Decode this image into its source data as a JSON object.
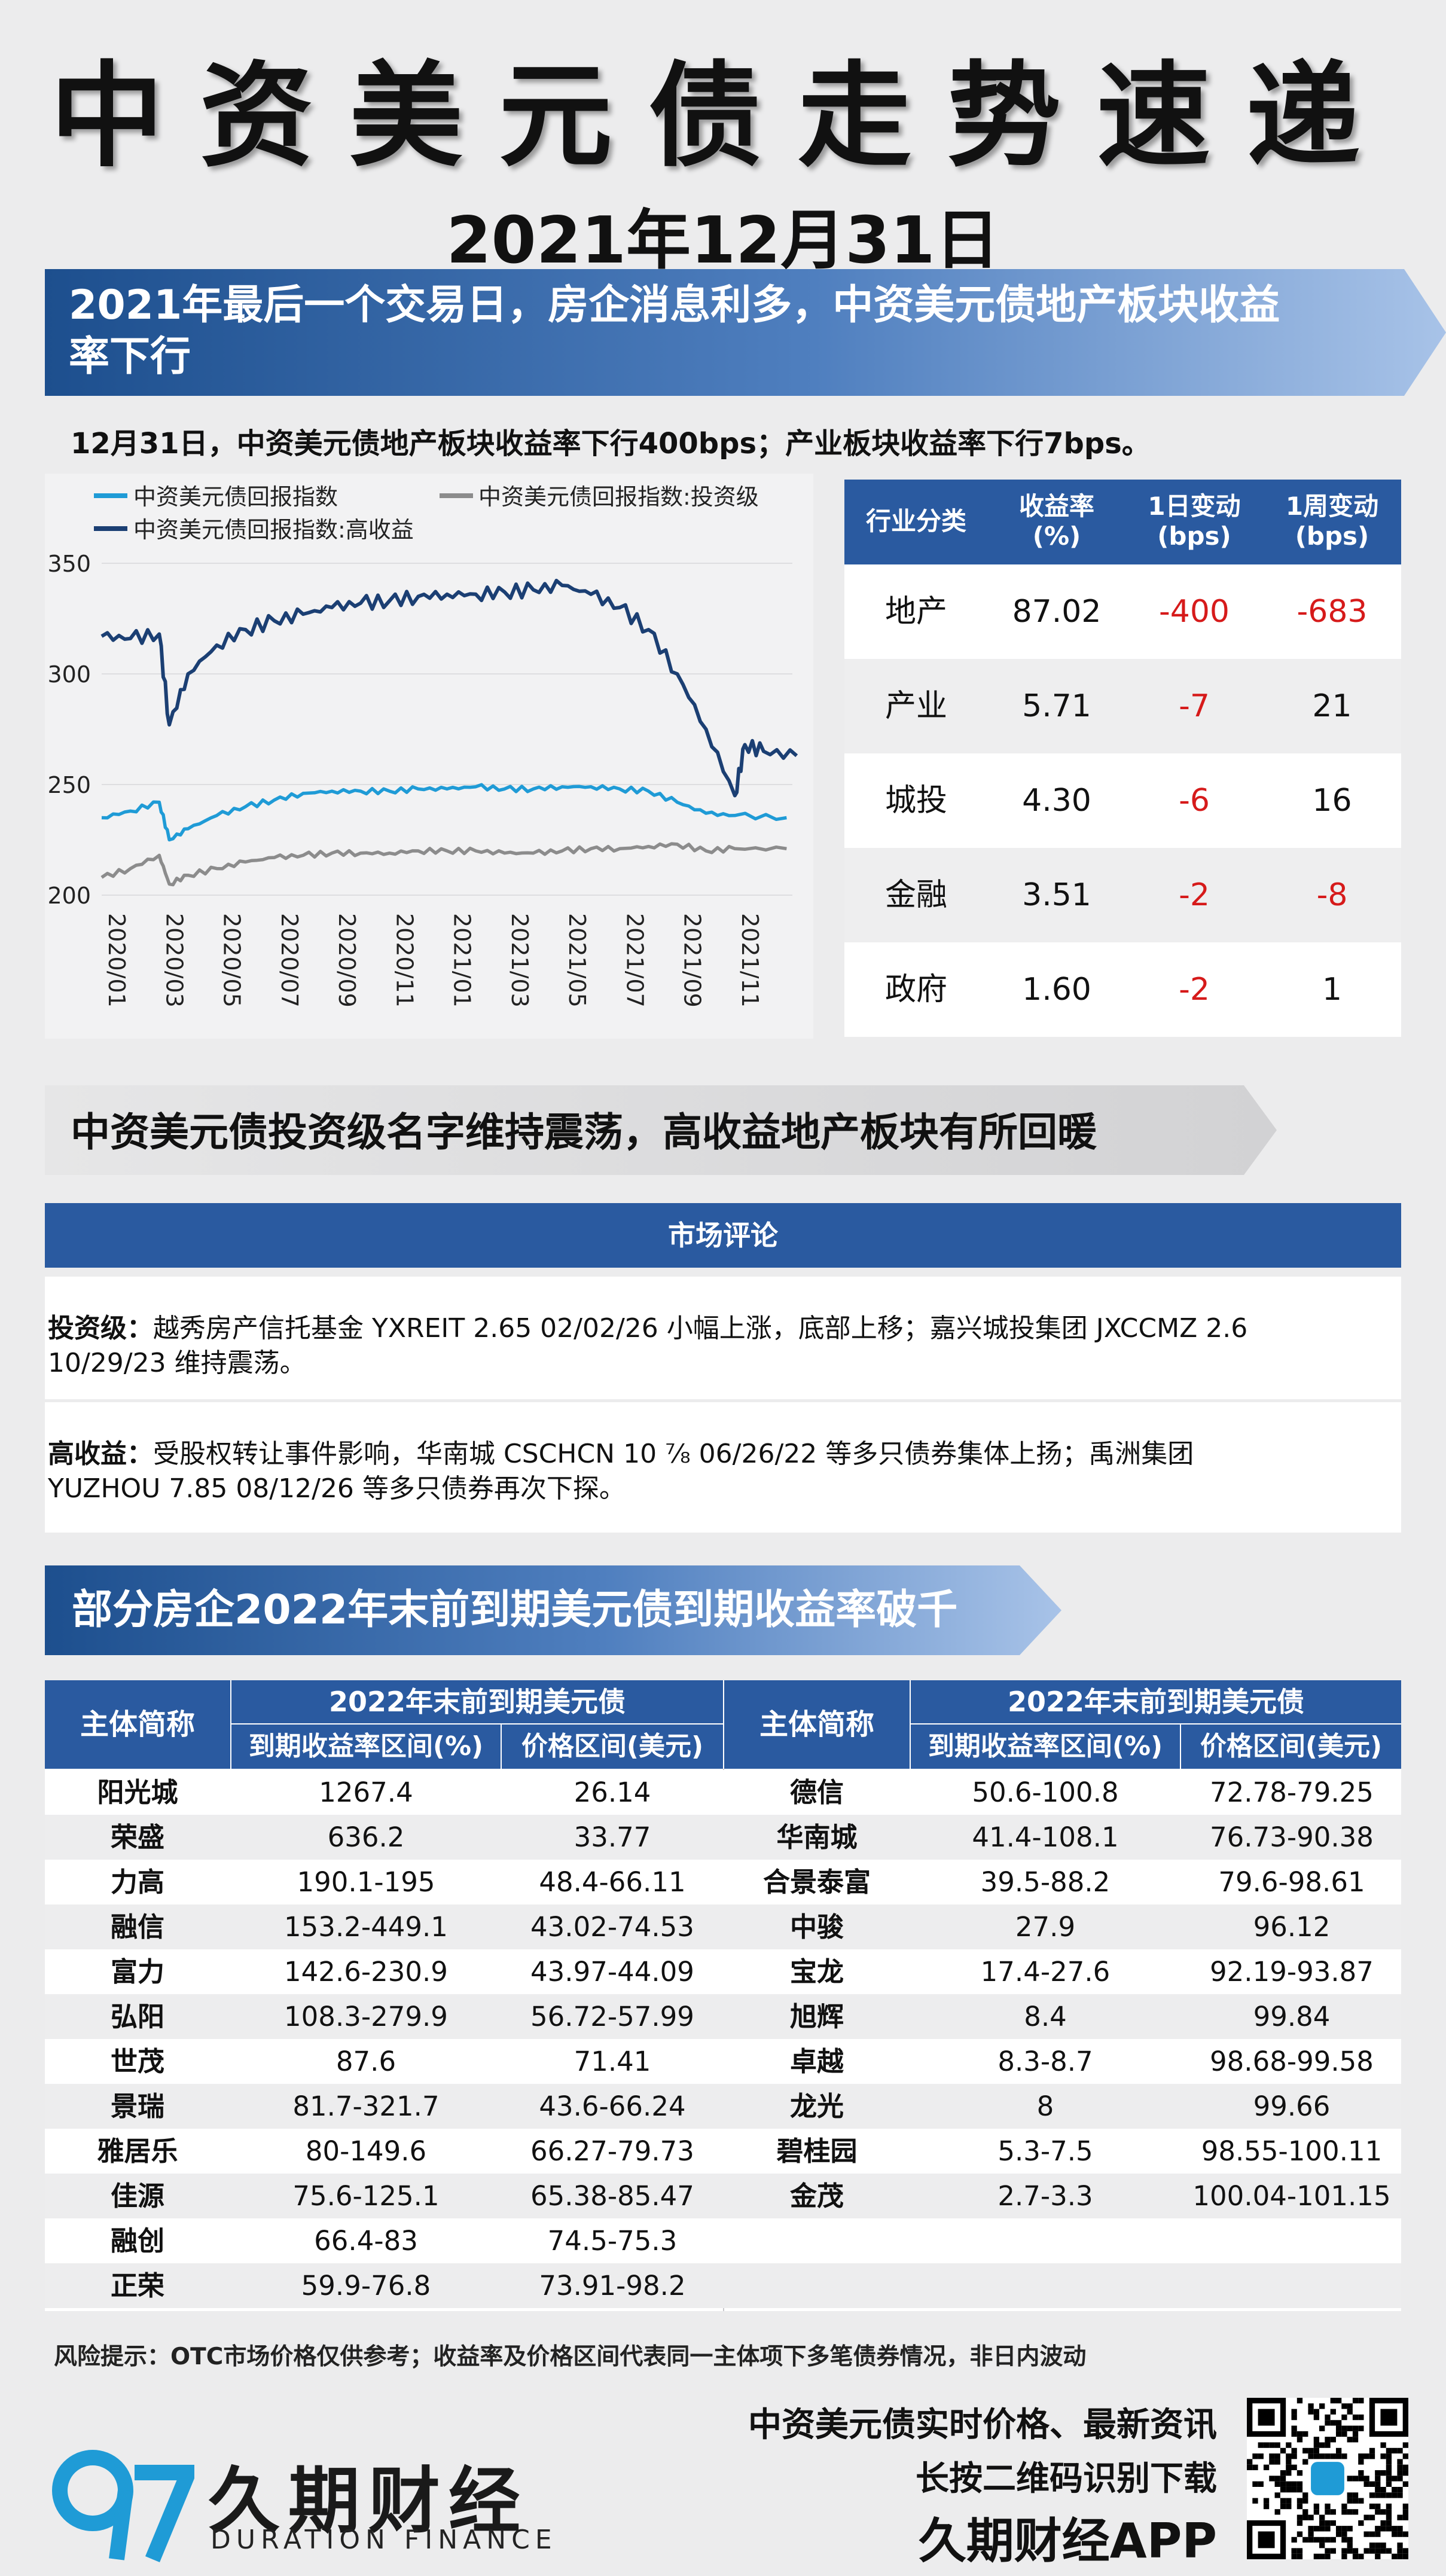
{
  "title": "中资美元债走势速递",
  "date": "2021年12月31日",
  "banner1": {
    "line1": "2021年最后一个交易日，房企消息利多，中资美元债地产板块收益",
    "line2": "率下行"
  },
  "subtitle": "12月31日，中资美元债地产板块收益率下行400bps；产业板块收益率下行7bps。",
  "chart_data": {
    "type": "line",
    "x_tick_labels": [
      "2020/01",
      "2020/03",
      "2020/05",
      "2020/07",
      "2020/09",
      "2020/11",
      "2021/01",
      "2021/03",
      "2021/05",
      "2021/07",
      "2021/09",
      "2021/11"
    ],
    "ylim": [
      200,
      350
    ],
    "y_ticks": [
      200,
      250,
      300,
      350
    ],
    "legend_placement": "top",
    "series": [
      {
        "name": "中资美元债回报指数",
        "color": "#1f9bd6",
        "x": [
          "2020/01",
          "2020/02",
          "2020/03",
          "2020/03",
          "2020/04",
          "2020/05",
          "2020/06",
          "2020/07",
          "2020/08",
          "2020/09",
          "2020/10",
          "2020/11",
          "2020/12",
          "2021/01",
          "2021/02",
          "2021/03",
          "2021/04",
          "2021/05",
          "2021/06",
          "2021/07",
          "2021/08",
          "2021/09",
          "2021/10",
          "2021/11",
          "2021/12"
        ],
        "values": [
          235,
          238,
          242,
          225,
          230,
          236,
          240,
          243,
          246,
          247,
          247,
          247,
          248,
          248,
          249,
          248,
          248,
          249,
          249,
          248,
          247,
          242,
          237,
          236,
          235
        ]
      },
      {
        "name": "中资美元债回报指数:投资级",
        "color": "#8c8c8c",
        "x": [
          "2020/01",
          "2020/02",
          "2020/03",
          "2020/03",
          "2020/04",
          "2020/05",
          "2020/06",
          "2020/07",
          "2020/08",
          "2020/09",
          "2020/10",
          "2020/11",
          "2020/12",
          "2021/01",
          "2021/02",
          "2021/03",
          "2021/04",
          "2021/05",
          "2021/06",
          "2021/07",
          "2021/08",
          "2021/09",
          "2021/10",
          "2021/11",
          "2021/12"
        ],
        "values": [
          208,
          212,
          218,
          205,
          209,
          212,
          215,
          217,
          218,
          219,
          219,
          219,
          220,
          220,
          220,
          219,
          219,
          220,
          221,
          221,
          222,
          223,
          220,
          221,
          221
        ]
      },
      {
        "name": "中资美元债回报指数:高收益",
        "color": "#1b3f73",
        "x": [
          "2020/01",
          "2020/02",
          "2020/03",
          "2020/03",
          "2020/04",
          "2020/05",
          "2020/06",
          "2020/07",
          "2020/08",
          "2020/09",
          "2020/10",
          "2020/11",
          "2020/12",
          "2021/01",
          "2021/02",
          "2021/03",
          "2021/04",
          "2021/05",
          "2021/06",
          "2021/07",
          "2021/08",
          "2021/09",
          "2021/10",
          "2021/11",
          "2021/11",
          "2021/12",
          "2021/12"
        ],
        "values": [
          317,
          316,
          318,
          277,
          300,
          313,
          320,
          324,
          327,
          330,
          332,
          333,
          335,
          336,
          336,
          337,
          338,
          340,
          336,
          330,
          320,
          300,
          275,
          245,
          268,
          265,
          263
        ]
      }
    ]
  },
  "sector_table": {
    "headers": [
      "行业分类",
      "收益率\n(%)",
      "1日变动\n(bps)",
      "1周变动\n(bps)"
    ],
    "rows": [
      {
        "sector": "地产",
        "yield": "87.02",
        "d1": "-400",
        "w1": "-683",
        "d1_red": true,
        "w1_red": true
      },
      {
        "sector": "产业",
        "yield": "5.71",
        "d1": "-7",
        "w1": "21",
        "d1_red": true,
        "w1_red": false
      },
      {
        "sector": "城投",
        "yield": "4.30",
        "d1": "-6",
        "w1": "16",
        "d1_red": true,
        "w1_red": false
      },
      {
        "sector": "金融",
        "yield": "3.51",
        "d1": "-2",
        "w1": "-8",
        "d1_red": true,
        "w1_red": true
      },
      {
        "sector": "政府",
        "yield": "1.60",
        "d1": "-2",
        "w1": "1",
        "d1_red": true,
        "w1_red": false
      }
    ]
  },
  "banner2": "中资美元债投资级名字维持震荡，高收益地产板块有所回暖",
  "comment": {
    "header": "市场评论",
    "ig_label": "投资级：",
    "ig_line1": "越秀房产信托基金 YXREIT 2.65 02/02/26 小幅上涨，底部上移；嘉兴城投集团 JXCCMZ 2.6",
    "ig_line2": "10/29/23 维持震荡。",
    "hy_label": "高收益：",
    "hy_line1": "受股权转让事件影响，华南城 CSCHCN 10 ⅞ 06/26/22 等多只债券集体上扬；禹洲集团",
    "hy_line2": "YUZHOU 7.85 08/12/26 等多只债券再次下探。"
  },
  "banner3": "部分房企2022年末前到期美元债到期收益率破千",
  "bond_table": {
    "col_issuer": "主体简称",
    "group_header": "2022年末前到期美元债",
    "col_ytm": "到期收益率区间(%)",
    "col_price": "价格区间(美元)",
    "left_rows": [
      [
        "阳光城",
        "1267.4",
        "26.14"
      ],
      [
        "荣盛",
        "636.2",
        "33.77"
      ],
      [
        "力高",
        "190.1-195",
        "48.4-66.11"
      ],
      [
        "融信",
        "153.2-449.1",
        "43.02-74.53"
      ],
      [
        "富力",
        "142.6-230.9",
        "43.97-44.09"
      ],
      [
        "弘阳",
        "108.3-279.9",
        "56.72-57.99"
      ],
      [
        "世茂",
        "87.6",
        "71.41"
      ],
      [
        "景瑞",
        "81.7-321.7",
        "43.6-66.24"
      ],
      [
        "雅居乐",
        "80-149.6",
        "66.27-79.73"
      ],
      [
        "佳源",
        "75.6-125.1",
        "65.38-85.47"
      ],
      [
        "融创",
        "66.4-83",
        "74.5-75.3"
      ],
      [
        "正荣",
        "59.9-76.8",
        "73.91-98.2"
      ]
    ],
    "right_rows": [
      [
        "德信",
        "50.6-100.8",
        "72.78-79.25"
      ],
      [
        "华南城",
        "41.4-108.1",
        "76.73-90.38"
      ],
      [
        "合景泰富",
        "39.5-88.2",
        "79.6-98.61"
      ],
      [
        "中骏",
        "27.9",
        "96.12"
      ],
      [
        "宝龙",
        "17.4-27.6",
        "92.19-93.87"
      ],
      [
        "旭辉",
        "8.4",
        "99.84"
      ],
      [
        "卓越",
        "8.3-8.7",
        "98.68-99.58"
      ],
      [
        "龙光",
        "8",
        "99.66"
      ],
      [
        "碧桂园",
        "5.3-7.5",
        "98.55-100.11"
      ],
      [
        "金茂",
        "2.7-3.3",
        "100.04-101.15"
      ]
    ]
  },
  "risk_note": "风险提示：OTC市场价格仅供参考；收益率及价格区间代表同一主体项下多笔债券情况，非日内波动",
  "footer": {
    "brand_cn": "久期财经",
    "brand_en": "DURATION FINANCE",
    "promo_line1": "中资美元债实时价格、最新资讯",
    "promo_line2": "长按二维码识别下载",
    "promo_line3": "久期财经APP"
  },
  "colors": {
    "accent_blue": "#2a5aa0",
    "negative_red": "#d61a1a"
  }
}
